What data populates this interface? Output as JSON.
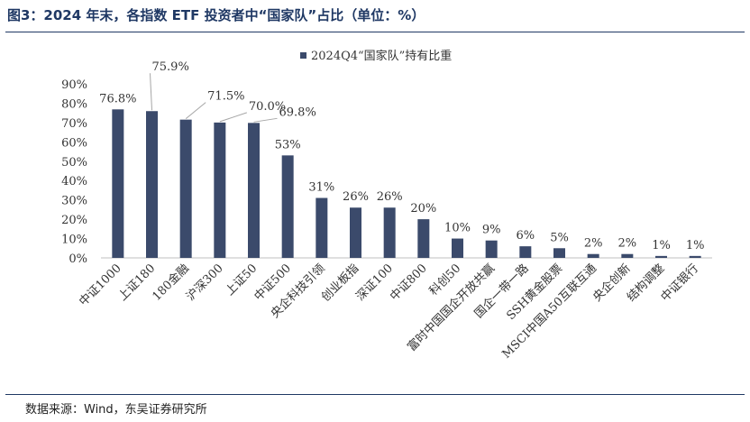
{
  "header": {
    "title": "图3：2024 年末，各指数 ETF 投资者中“国家队”占比（单位：%）"
  },
  "footer": {
    "source": "数据来源：Wind，东吴证券研究所"
  },
  "colors": {
    "bar": "#3b4a6b",
    "title": "#1f3864",
    "leader": "#a6a6a6"
  },
  "chart_data": {
    "type": "bar",
    "legend_position": "top",
    "grid": false,
    "ylim": [
      0,
      90
    ],
    "yticks": [
      "0%",
      "10%",
      "20%",
      "30%",
      "40%",
      "50%",
      "60%",
      "70%",
      "80%",
      "90%"
    ],
    "categories": [
      "中证1000",
      "上证180",
      "180金融",
      "沪深300",
      "上证50",
      "中证500",
      "央企科技引领",
      "创业板指",
      "深证100",
      "中证800",
      "科创50",
      "富时中国国企开放共赢",
      "国企一带一路",
      "SSH黄金股票",
      "MSCI中国A50互联互通",
      "央企创新",
      "结构调整",
      "中证银行"
    ],
    "series": [
      {
        "name": "2024Q4“国家队”持有比重",
        "values": [
          76.8,
          75.9,
          71.5,
          70.0,
          69.8,
          53,
          31,
          26,
          26,
          20,
          10,
          9,
          6,
          5,
          2,
          2,
          1,
          1
        ],
        "labels": [
          "76.8%",
          "75.9%",
          "71.5%",
          "70.0%",
          "69.8%",
          "53%",
          "31%",
          "26%",
          "26%",
          "20%",
          "10%",
          "9%",
          "6%",
          "5%",
          "2%",
          "2%",
          "1%",
          "1%"
        ]
      }
    ]
  }
}
